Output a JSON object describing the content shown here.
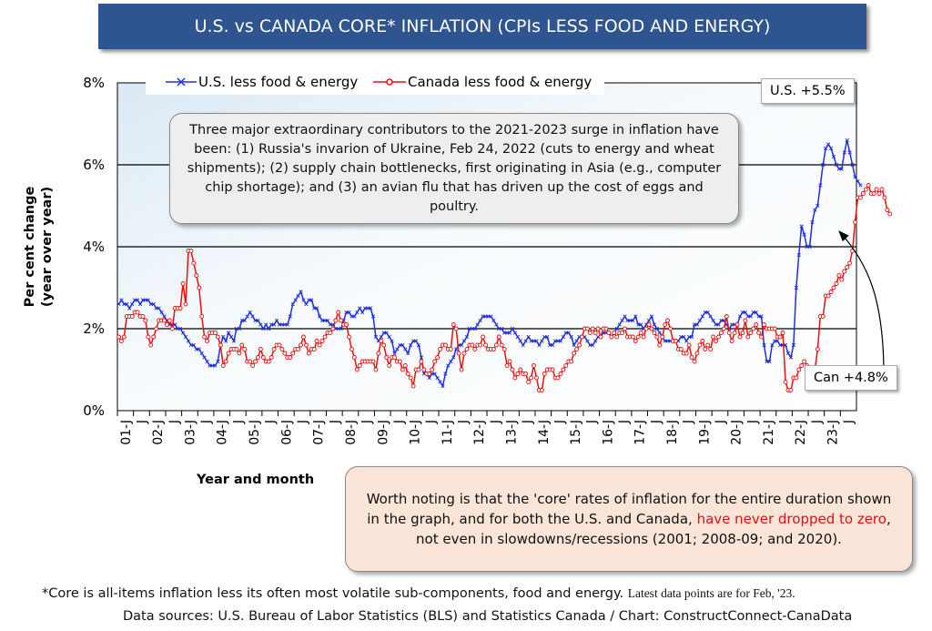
{
  "title": "U.S. vs CANADA CORE* INFLATION (CPIs LESS FOOD AND ENERGY)",
  "ylabel_line1": "Per cent change",
  "ylabel_line2": "(year over year)",
  "xlabel": "Year and month",
  "callout_main": "Three major extraordinary contributors to the 2021-2023 surge in inflation have been: (1) Russia's invarion of Ukraine, Feb 24, 2022 (cuts to energy and wheat shipments); (2) supply chain bottlenecks, first originating in Asia (e.g., computer chip shortage); and (3) an avian flu that has driven up the cost of eggs and poultry.",
  "callout_note_pre": "Worth noting is that the 'core' rates of inflation for the entire duration shown in the graph, and for both the U.S. and Canada, ",
  "callout_note_red": "have never dropped to zero",
  "callout_note_post": ", not even in slowdowns/recessions (2001; 2008-09; and 2020).",
  "label_us": "U.S. +5.5%",
  "label_can": "Can +4.8%",
  "footnote": "*Core is all-items inflation less its often most volatile sub-components, food and energy.",
  "latest_note": "Latest data points are for Feb, '23.",
  "sources": "Data sources: U.S. Bureau of Labor Statistics (BLS) and Statistics Canada / Chart: ConstructConnect-CanaData",
  "colors": {
    "us": "#1f2fe0",
    "canada": "#e81010",
    "banner": "#2e5590"
  },
  "chart_data": {
    "type": "line",
    "x_start": "2001-01",
    "x_frequency": "monthly",
    "ylim": [
      0,
      8
    ],
    "yticks": [
      0,
      2,
      4,
      6,
      8
    ],
    "ytick_labels": [
      "0%",
      "2%",
      "4%",
      "6%",
      "8%"
    ],
    "xtick_labels": [
      "01-J",
      "J",
      "02-J",
      "J",
      "03-J",
      "J",
      "04-J",
      "J",
      "05-J",
      "J",
      "06-J",
      "J",
      "07-J",
      "J",
      "08-J",
      "J",
      "09-J",
      "J",
      "10-J",
      "J",
      "11-J",
      "J",
      "12-J",
      "J",
      "13-J",
      "J",
      "14-J",
      "J",
      "15-J",
      "J",
      "16-J",
      "J",
      "17-J",
      "J",
      "18-J",
      "J",
      "19-J",
      "J",
      "20-J",
      "J",
      "21-J",
      "J",
      "22-J",
      "J",
      "23-J",
      "J"
    ],
    "grid": "horizontal",
    "legend": "top",
    "series": [
      {
        "name": "U.S. less food & energy",
        "marker": "x",
        "values": [
          2.6,
          2.7,
          2.6,
          2.6,
          2.5,
          2.6,
          2.7,
          2.7,
          2.6,
          2.7,
          2.7,
          2.7,
          2.6,
          2.6,
          2.5,
          2.5,
          2.4,
          2.3,
          2.2,
          2.1,
          2.1,
          2.1,
          2.0,
          2.0,
          1.9,
          1.8,
          1.7,
          1.6,
          1.6,
          1.5,
          1.5,
          1.4,
          1.3,
          1.2,
          1.1,
          1.1,
          1.1,
          1.2,
          1.6,
          1.8,
          1.7,
          1.9,
          1.8,
          1.7,
          2.0,
          2.0,
          2.2,
          2.2,
          2.3,
          2.4,
          2.3,
          2.2,
          2.2,
          2.1,
          2.0,
          2.1,
          2.0,
          2.1,
          2.1,
          2.2,
          2.1,
          2.1,
          2.1,
          2.1,
          2.3,
          2.6,
          2.7,
          2.8,
          2.9,
          2.7,
          2.6,
          2.7,
          2.7,
          2.5,
          2.5,
          2.3,
          2.2,
          2.2,
          2.2,
          2.1,
          2.1,
          2.0,
          2.0,
          2.0,
          2.2,
          2.4,
          2.4,
          2.3,
          2.3,
          2.4,
          2.5,
          2.4,
          2.5,
          2.5,
          2.5,
          2.3,
          1.8,
          1.7,
          1.8,
          1.9,
          1.9,
          1.8,
          1.7,
          1.4,
          1.5,
          1.6,
          1.6,
          1.5,
          1.4,
          1.6,
          1.7,
          1.7,
          1.6,
          1.3,
          0.9,
          0.9,
          0.8,
          0.9,
          0.9,
          0.8,
          0.7,
          0.6,
          0.9,
          1.1,
          1.2,
          1.3,
          1.5,
          1.6,
          1.6,
          1.7,
          1.8,
          2.0,
          2.0,
          2.0,
          2.1,
          2.2,
          2.3,
          2.3,
          2.3,
          2.3,
          2.2,
          2.1,
          2.0,
          2.0,
          1.9,
          1.9,
          1.9,
          2.0,
          1.9,
          1.8,
          1.7,
          1.6,
          1.7,
          1.8,
          1.7,
          1.7,
          1.7,
          1.6,
          1.7,
          1.8,
          1.8,
          1.6,
          1.6,
          1.7,
          1.7,
          1.7,
          1.8,
          1.9,
          1.9,
          1.8,
          1.6,
          1.7,
          1.8,
          1.8,
          1.8,
          1.7,
          1.6,
          1.6,
          1.7,
          1.8,
          1.8,
          1.9,
          1.9,
          1.9,
          1.8,
          1.9,
          2.0,
          2.1,
          2.2,
          2.3,
          2.2,
          2.2,
          2.2,
          2.3,
          2.1,
          2.1,
          2.0,
          2.1,
          2.2,
          2.3,
          2.1,
          2.0,
          1.9,
          1.8,
          1.7,
          1.7,
          1.7,
          1.7,
          1.7,
          1.7,
          1.8,
          1.8,
          1.7,
          1.8,
          1.8,
          2.1,
          2.1,
          2.2,
          2.3,
          2.4,
          2.4,
          2.3,
          2.2,
          2.1,
          2.1,
          2.2,
          2.2,
          2.1,
          2.0,
          2.1,
          2.1,
          2.1,
          2.3,
          2.4,
          2.4,
          2.3,
          2.3,
          2.4,
          2.4,
          2.3,
          2.3,
          1.6,
          1.2,
          1.2,
          1.6,
          1.7,
          1.7,
          1.6,
          1.6,
          1.6,
          1.4,
          1.3,
          1.6,
          3.0,
          3.8,
          4.5,
          4.3,
          4.0,
          4.0,
          4.6,
          4.9,
          5.0,
          5.5,
          6.0,
          6.4,
          6.5,
          6.4,
          6.2,
          6.0,
          5.9,
          5.9,
          6.3,
          6.6,
          6.3,
          6.0,
          5.7,
          5.6,
          5.5
        ]
      },
      {
        "name": "Canada less food & energy",
        "marker": "circle",
        "values": [
          1.8,
          1.7,
          1.8,
          2.3,
          2.3,
          2.3,
          2.4,
          2.4,
          2.3,
          2.3,
          2.2,
          1.8,
          1.6,
          1.8,
          2.0,
          2.2,
          2.2,
          2.2,
          2.1,
          2.2,
          2.0,
          2.5,
          2.5,
          2.5,
          3.1,
          2.6,
          3.9,
          3.9,
          3.6,
          3.3,
          3.0,
          2.3,
          1.8,
          1.7,
          1.9,
          1.9,
          1.9,
          1.8,
          1.6,
          1.1,
          1.2,
          1.4,
          1.5,
          1.5,
          1.5,
          1.4,
          1.6,
          1.5,
          1.2,
          1.2,
          1.1,
          1.2,
          1.3,
          1.5,
          1.3,
          1.2,
          1.2,
          1.3,
          1.5,
          1.6,
          1.6,
          1.5,
          1.4,
          1.3,
          1.3,
          1.4,
          1.5,
          1.5,
          1.6,
          1.8,
          1.6,
          1.4,
          1.5,
          1.5,
          1.7,
          1.6,
          1.7,
          1.8,
          1.9,
          1.9,
          2.0,
          2.2,
          2.4,
          2.2,
          2.1,
          2.1,
          1.8,
          1.5,
          1.3,
          1.0,
          1.1,
          1.2,
          1.2,
          1.2,
          1.2,
          1.2,
          1.0,
          1.4,
          1.7,
          1.6,
          1.3,
          1.1,
          1.3,
          1.3,
          1.2,
          1.2,
          1.0,
          1.1,
          0.9,
          0.8,
          0.6,
          1.0,
          1.0,
          1.2,
          1.0,
          0.9,
          0.9,
          1.0,
          1.2,
          1.3,
          1.5,
          1.6,
          1.6,
          1.5,
          1.5,
          2.1,
          2.0,
          1.4,
          1.0,
          1.4,
          1.5,
          1.6,
          1.6,
          1.5,
          1.6,
          1.6,
          1.8,
          1.6,
          1.5,
          1.5,
          1.5,
          1.6,
          1.8,
          1.6,
          1.5,
          1.1,
          1.2,
          1.0,
          0.8,
          0.9,
          1.0,
          0.9,
          0.9,
          0.7,
          0.8,
          1.1,
          0.8,
          0.5,
          0.5,
          0.9,
          1.0,
          1.0,
          1.0,
          0.8,
          0.8,
          0.9,
          1.0,
          1.1,
          1.2,
          1.2,
          1.4,
          1.5,
          1.6,
          1.8,
          2.0,
          2.0,
          1.9,
          2.0,
          1.9,
          2.0,
          1.8,
          2.0,
          2.0,
          1.9,
          1.8,
          1.9,
          1.8,
          1.9,
          1.9,
          2.0,
          1.8,
          1.8,
          1.8,
          1.7,
          1.8,
          1.9,
          1.8,
          2.0,
          2.1,
          2.0,
          1.9,
          1.8,
          1.6,
          1.8,
          2.1,
          2.2,
          2.0,
          1.7,
          1.7,
          1.5,
          1.5,
          1.4,
          1.4,
          1.6,
          1.3,
          1.2,
          1.4,
          1.6,
          1.7,
          1.5,
          1.6,
          1.5,
          1.8,
          1.7,
          1.8,
          1.9,
          2.0,
          2.3,
          1.9,
          1.7,
          1.9,
          2.1,
          1.8,
          1.9,
          2.2,
          1.8,
          1.9,
          2.0,
          2.1,
          1.9,
          1.8,
          2.1,
          2.0,
          2.0,
          2.0,
          2.0,
          1.8,
          1.8,
          1.9,
          0.7,
          0.5,
          0.5,
          0.8,
          0.8,
          1.0,
          1.1,
          1.2,
          1.1,
          0.8,
          0.8,
          1.0,
          1.5,
          2.3,
          2.3,
          2.8,
          2.8,
          2.9,
          3.0,
          3.1,
          3.3,
          3.2,
          3.4,
          3.5,
          3.6,
          3.9,
          4.6,
          5.2,
          5.2,
          5.3,
          5.4,
          5.5,
          5.3,
          5.3,
          5.4,
          5.3,
          5.4,
          5.2,
          4.9,
          4.8
        ]
      }
    ]
  }
}
